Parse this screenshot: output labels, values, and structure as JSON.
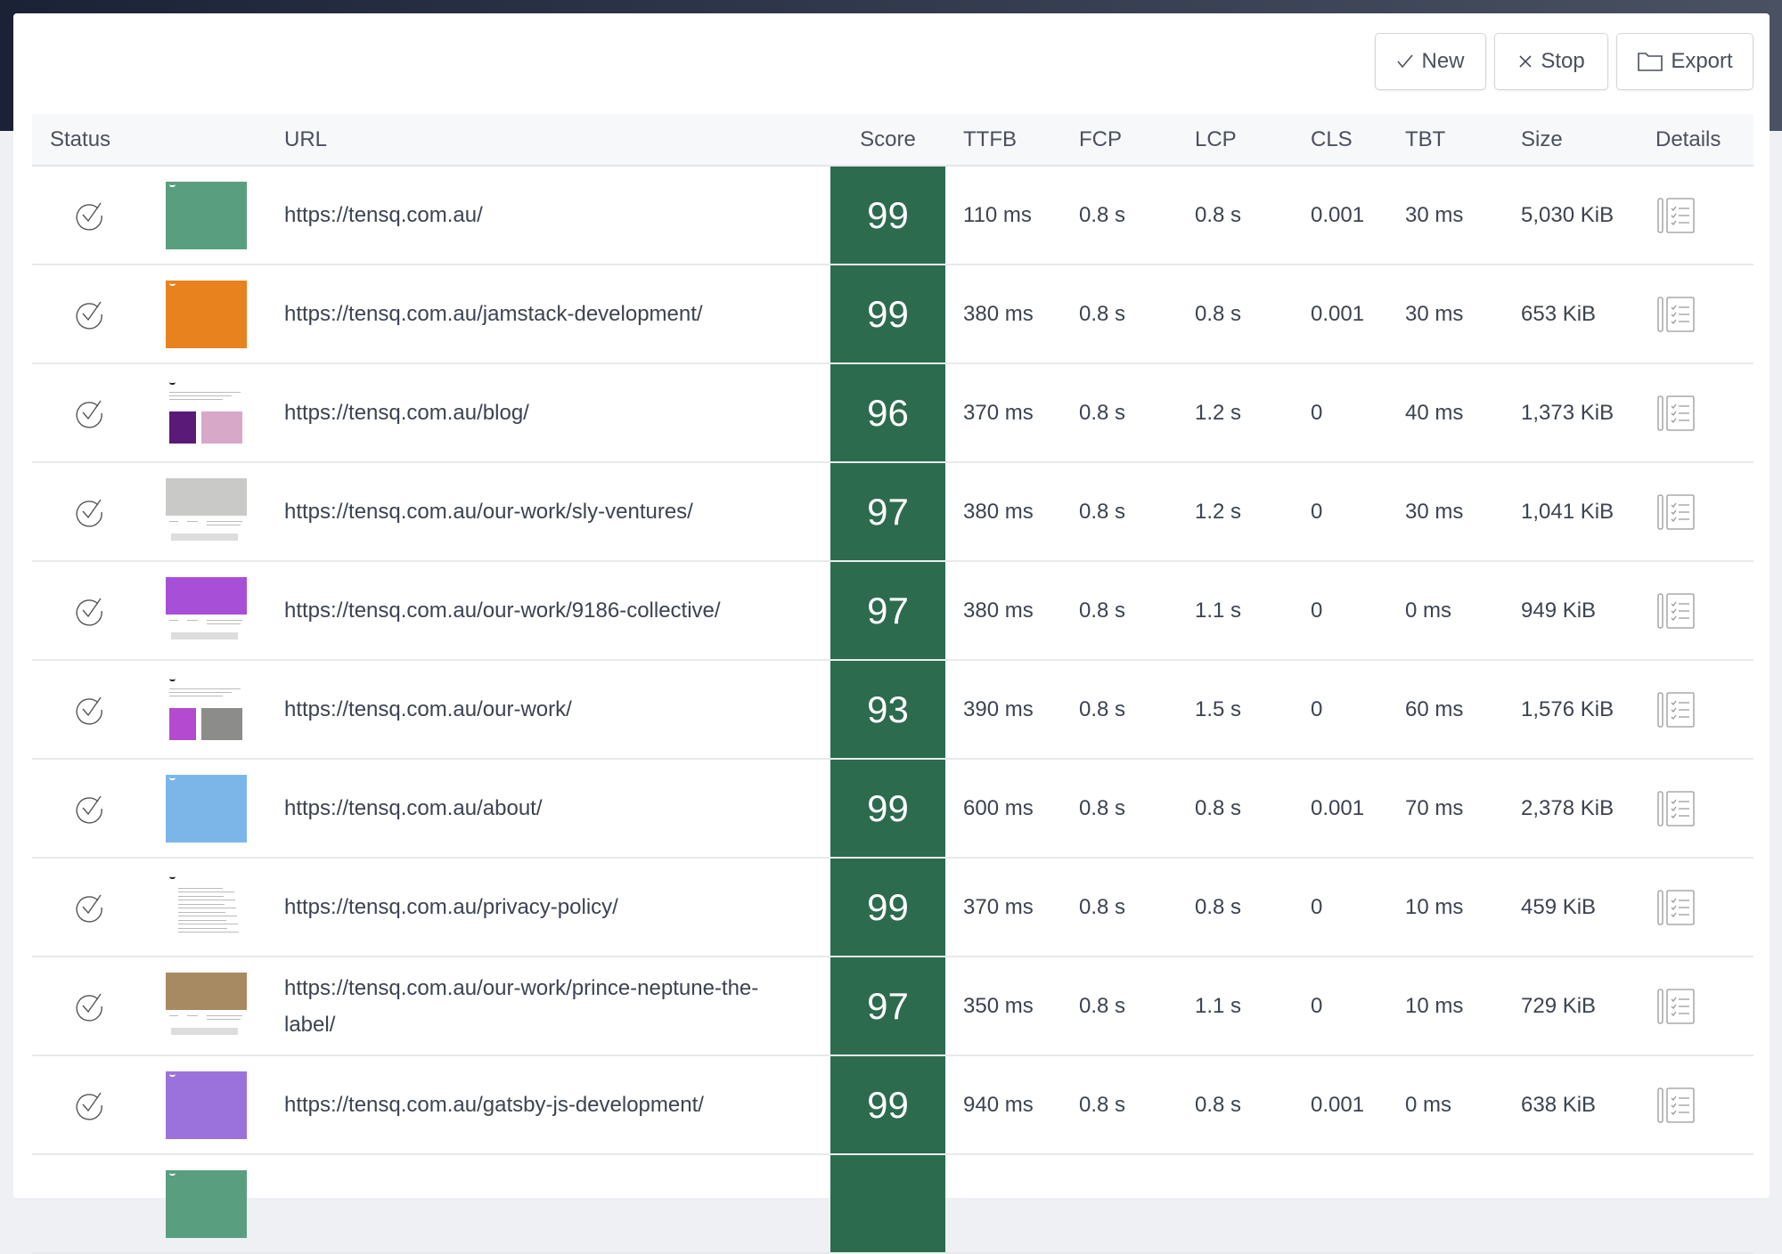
{
  "toolbar": {
    "new_label": "New",
    "stop_label": "Stop",
    "export_label": "Export"
  },
  "columns": [
    "Status",
    "URL",
    "Score",
    "TTFB",
    "FCP",
    "LCP",
    "CLS",
    "TBT",
    "Size",
    "Details"
  ],
  "score_color": "#2d6b4f",
  "rows": [
    {
      "status": "check-circle-icon",
      "thumb": {
        "kind": "solid",
        "color": "#5a9e80"
      },
      "url": "https://tensq.com.au/",
      "score": "99",
      "ttfb": "110 ms",
      "fcp": "0.8 s",
      "lcp": "0.8 s",
      "cls": "0.001",
      "tbt": "30 ms",
      "size": "5,030 KiB"
    },
    {
      "status": "check-circle-icon",
      "thumb": {
        "kind": "solid",
        "color": "#e8821e"
      },
      "url": "https://tensq.com.au/jamstack-development/",
      "score": "99",
      "ttfb": "380 ms",
      "fcp": "0.8 s",
      "lcp": "0.8 s",
      "cls": "0.001",
      "tbt": "30 ms",
      "size": "653 KiB"
    },
    {
      "status": "check-circle-icon",
      "thumb": {
        "kind": "grid",
        "a": "#5a1a78",
        "b": "#d8a8c8"
      },
      "url": "https://tensq.com.au/blog/",
      "score": "96",
      "ttfb": "370 ms",
      "fcp": "0.8 s",
      "lcp": "1.2 s",
      "cls": "0",
      "tbt": "40 ms",
      "size": "1,373 KiB"
    },
    {
      "status": "check-circle-icon",
      "thumb": {
        "kind": "hero",
        "color": "#c9c9c7"
      },
      "url": "https://tensq.com.au/our-work/sly-ventures/",
      "score": "97",
      "ttfb": "380 ms",
      "fcp": "0.8 s",
      "lcp": "1.2 s",
      "cls": "0",
      "tbt": "30 ms",
      "size": "1,041 KiB"
    },
    {
      "status": "check-circle-icon",
      "thumb": {
        "kind": "hero",
        "color": "#a84fd8"
      },
      "url": "https://tensq.com.au/our-work/9186-collective/",
      "score": "97",
      "ttfb": "380 ms",
      "fcp": "0.8 s",
      "lcp": "1.1 s",
      "cls": "0",
      "tbt": "0 ms",
      "size": "949 KiB"
    },
    {
      "status": "check-circle-icon",
      "thumb": {
        "kind": "grid",
        "a": "#b44ad0",
        "b": "#8c8c8a"
      },
      "url": "https://tensq.com.au/our-work/",
      "score": "93",
      "ttfb": "390 ms",
      "fcp": "0.8 s",
      "lcp": "1.5 s",
      "cls": "0",
      "tbt": "60 ms",
      "size": "1,576 KiB"
    },
    {
      "status": "check-circle-icon",
      "thumb": {
        "kind": "solid",
        "color": "#7cb6e8"
      },
      "url": "https://tensq.com.au/about/",
      "score": "99",
      "ttfb": "600 ms",
      "fcp": "0.8 s",
      "lcp": "0.8 s",
      "cls": "0.001",
      "tbt": "70 ms",
      "size": "2,378 KiB"
    },
    {
      "status": "check-circle-icon",
      "thumb": {
        "kind": "text"
      },
      "url": "https://tensq.com.au/privacy-policy/",
      "score": "99",
      "ttfb": "370 ms",
      "fcp": "0.8 s",
      "lcp": "0.8 s",
      "cls": "0",
      "tbt": "10 ms",
      "size": "459 KiB"
    },
    {
      "status": "check-circle-icon",
      "thumb": {
        "kind": "hero",
        "color": "#a88a62"
      },
      "url": "https://tensq.com.au/our-work/prince-neptune-the-label/",
      "score": "97",
      "ttfb": "350 ms",
      "fcp": "0.8 s",
      "lcp": "1.1 s",
      "cls": "0",
      "tbt": "10 ms",
      "size": "729 KiB"
    },
    {
      "status": "check-circle-icon",
      "thumb": {
        "kind": "solid",
        "color": "#9b72dc"
      },
      "url": "https://tensq.com.au/gatsby-js-development/",
      "score": "99",
      "ttfb": "940 ms",
      "fcp": "0.8 s",
      "lcp": "0.8 s",
      "cls": "0.001",
      "tbt": "0 ms",
      "size": "638 KiB"
    },
    {
      "status": "",
      "thumb": {
        "kind": "solid",
        "color": "#5a9e80"
      },
      "url": "",
      "score": "",
      "ttfb": "",
      "fcp": "",
      "lcp": "",
      "cls": "",
      "tbt": "",
      "size": ""
    }
  ]
}
